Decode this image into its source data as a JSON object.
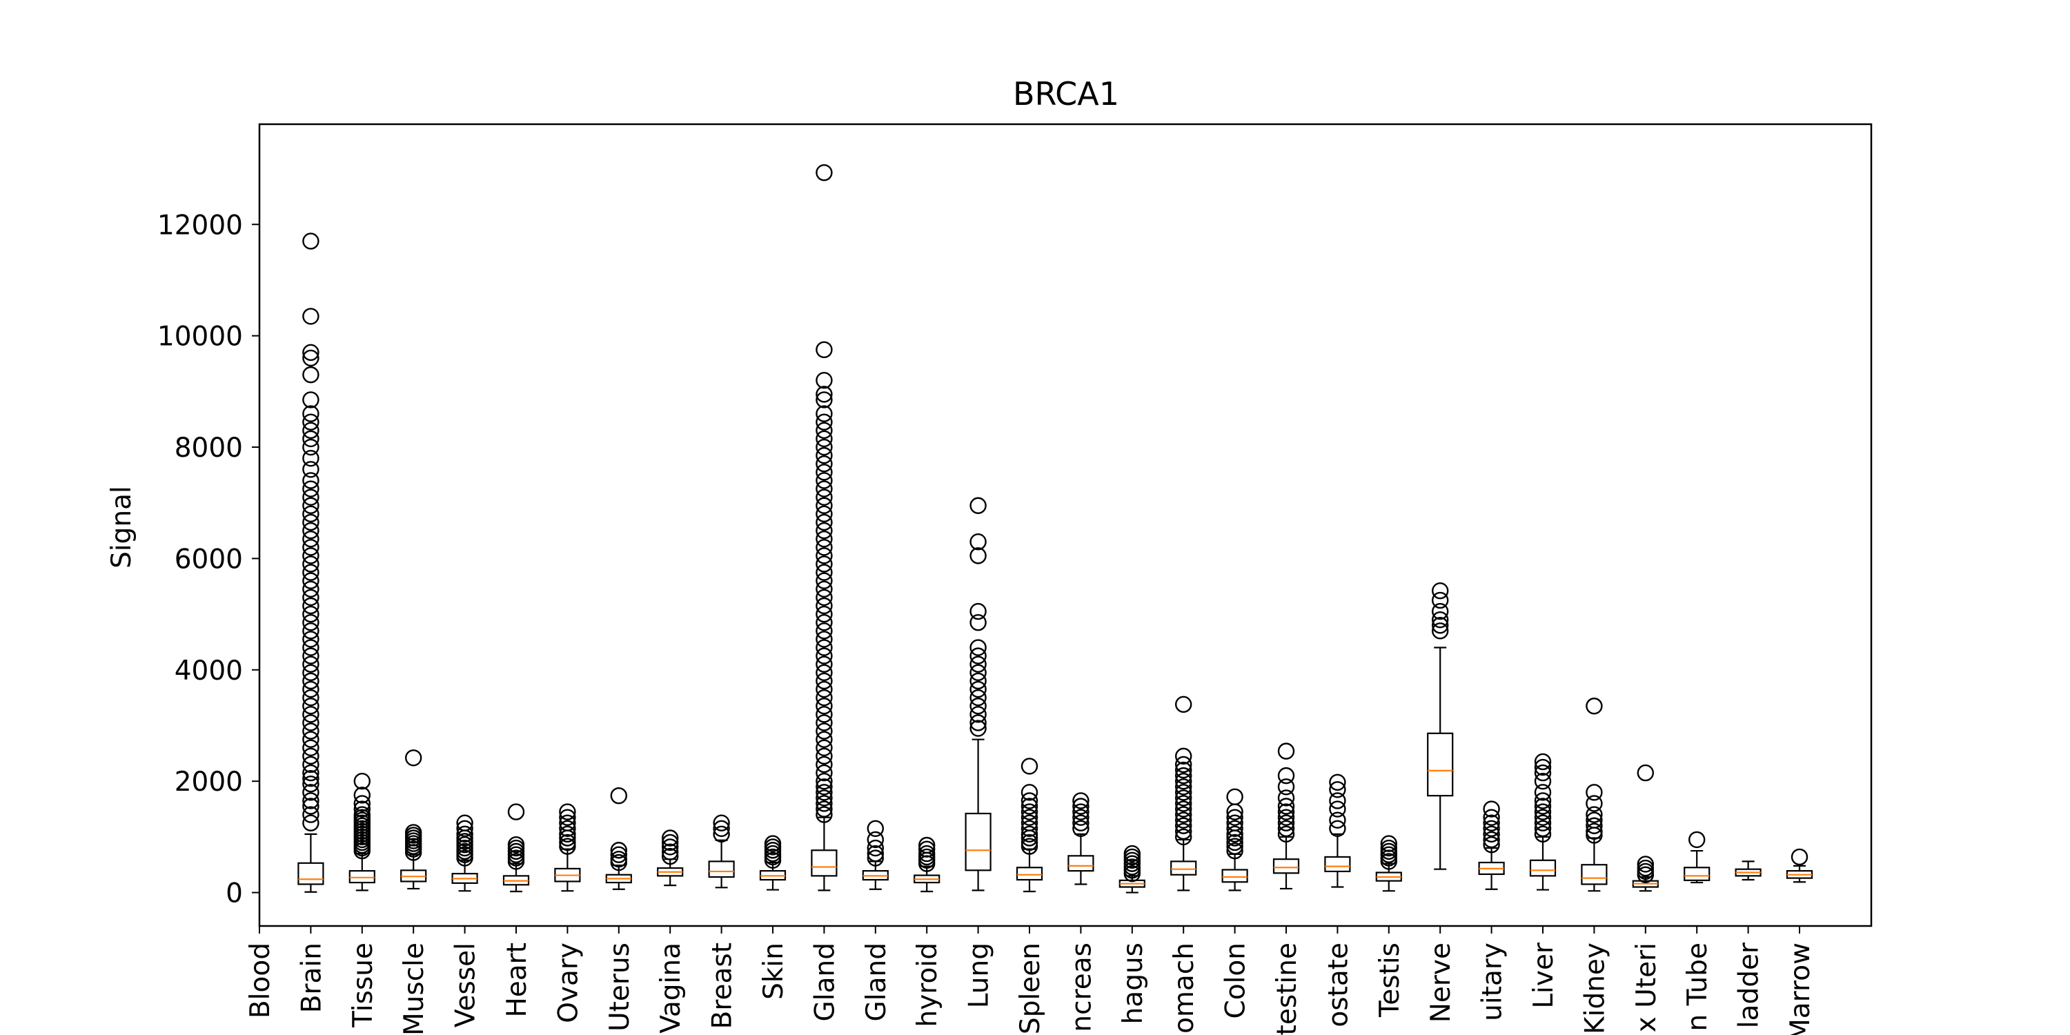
{
  "chart_data": {
    "type": "box",
    "title": "BRCA1",
    "xlabel": "",
    "ylabel": "Signal",
    "ylim": [
      -600,
      13800
    ],
    "yticks": [
      0,
      2000,
      4000,
      6000,
      8000,
      10000,
      12000
    ],
    "grid": false,
    "categories": [
      "Blood",
      "Brain",
      "Tissue",
      "Muscle",
      "Vessel",
      "Heart",
      "Ovary",
      "Uterus",
      "Vagina",
      "Breast",
      "Skin",
      "Gland",
      "Gland",
      "hyroid",
      "Lung",
      "Spleen",
      "ncreas",
      "hagus",
      "omach",
      "Colon",
      "testine",
      "ostate",
      "Testis",
      "Nerve",
      "uitary",
      "Liver",
      "Kidney",
      "x Uteri",
      "n Tube",
      "ladder",
      "Marrow"
    ],
    "colors": {
      "box": "#000000",
      "median": "#ff7f0e"
    },
    "boxes": [
      {
        "category": "Blood",
        "q1": null,
        "median": null,
        "q3": null,
        "whisker_low": null,
        "whisker_high": null,
        "outliers": []
      },
      {
        "category": "Brain",
        "q1": 150,
        "median": 240,
        "q3": 530,
        "whisker_low": 10,
        "whisker_high": 1050,
        "outliers": [
          1250,
          1400,
          1550,
          1650,
          1800,
          1950,
          2050,
          2150,
          2300,
          2450,
          2600,
          2750,
          2900,
          3050,
          3200,
          3350,
          3500,
          3650,
          3800,
          3950,
          4100,
          4250,
          4400,
          4550,
          4700,
          4850,
          5000,
          5150,
          5300,
          5450,
          5600,
          5750,
          5900,
          6050,
          6200,
          6350,
          6500,
          6650,
          6800,
          6950,
          7100,
          7250,
          7400,
          7600,
          7800,
          8000,
          8150,
          8300,
          8450,
          8600,
          8850,
          9300,
          9600,
          9700,
          10350,
          11700
        ]
      },
      {
        "category": "Tissue",
        "q1": 180,
        "median": 270,
        "q3": 390,
        "whisker_low": 40,
        "whisker_high": 700,
        "outliers": [
          750,
          800,
          850,
          900,
          950,
          1000,
          1050,
          1100,
          1150,
          1200,
          1250,
          1300,
          1350,
          1400,
          1500,
          1600,
          1750,
          2000
        ]
      },
      {
        "category": "Muscle",
        "q1": 200,
        "median": 290,
        "q3": 400,
        "whisker_low": 70,
        "whisker_high": 680,
        "outliers": [
          720,
          780,
          830,
          880,
          930,
          980,
          1030,
          1080,
          2420
        ]
      },
      {
        "category": "Vessel",
        "q1": 170,
        "median": 250,
        "q3": 340,
        "whisker_low": 30,
        "whisker_high": 580,
        "outliers": [
          620,
          680,
          740,
          800,
          860,
          920,
          980,
          1050,
          1150,
          1250
        ]
      },
      {
        "category": "Heart",
        "q1": 140,
        "median": 210,
        "q3": 300,
        "whisker_low": 20,
        "whisker_high": 520,
        "outliers": [
          560,
          620,
          680,
          740,
          800,
          860,
          1450
        ]
      },
      {
        "category": "Ovary",
        "q1": 200,
        "median": 310,
        "q3": 430,
        "whisker_low": 30,
        "whisker_high": 780,
        "outliers": [
          830,
          900,
          980,
          1050,
          1150,
          1250,
          1350,
          1450
        ]
      },
      {
        "category": "Uterus",
        "q1": 180,
        "median": 250,
        "q3": 320,
        "whisker_low": 60,
        "whisker_high": 490,
        "outliers": [
          540,
          600,
          680,
          760,
          1740
        ]
      },
      {
        "category": "Vagina",
        "q1": 300,
        "median": 370,
        "q3": 440,
        "whisker_low": 130,
        "whisker_high": 600,
        "outliers": [
          650,
          730,
          820,
          900,
          980
        ]
      },
      {
        "category": "Breast",
        "q1": 280,
        "median": 380,
        "q3": 560,
        "whisker_low": 90,
        "whisker_high": 940,
        "outliers": [
          1050,
          1150,
          1250
        ]
      },
      {
        "category": "Skin",
        "q1": 230,
        "median": 300,
        "q3": 390,
        "whisker_low": 50,
        "whisker_high": 540,
        "outliers": [
          580,
          640,
          700,
          760,
          820,
          880
        ]
      },
      {
        "category": "Gland",
        "q1": 300,
        "median": 460,
        "q3": 760,
        "whisker_low": 40,
        "whisker_high": 1350,
        "outliers": [
          1400,
          1500,
          1600,
          1700,
          1800,
          1900,
          2000,
          2150,
          2300,
          2450,
          2600,
          2750,
          2900,
          3050,
          3200,
          3350,
          3500,
          3650,
          3800,
          3950,
          4100,
          4250,
          4400,
          4550,
          4700,
          4850,
          5000,
          5150,
          5300,
          5450,
          5600,
          5750,
          5900,
          6050,
          6200,
          6350,
          6500,
          6650,
          6800,
          6950,
          7100,
          7250,
          7400,
          7550,
          7700,
          7850,
          8000,
          8150,
          8300,
          8450,
          8600,
          8850,
          8950,
          9200,
          9750,
          12930
        ]
      },
      {
        "category": "Gland",
        "q1": 230,
        "median": 300,
        "q3": 390,
        "whisker_low": 60,
        "whisker_high": 560,
        "outliers": [
          620,
          700,
          800,
          950,
          1150
        ]
      },
      {
        "category": "hyroid",
        "q1": 180,
        "median": 240,
        "q3": 310,
        "whisker_low": 20,
        "whisker_high": 470,
        "outliers": [
          520,
          580,
          640,
          700,
          780,
          850
        ]
      },
      {
        "category": "Lung",
        "q1": 400,
        "median": 760,
        "q3": 1420,
        "whisker_low": 40,
        "whisker_high": 2750,
        "outliers": [
          2950,
          3050,
          3200,
          3350,
          3500,
          3650,
          3800,
          3950,
          4100,
          4250,
          4400,
          4850,
          5050,
          6050,
          6300,
          6950
        ]
      },
      {
        "category": "Spleen",
        "q1": 230,
        "median": 320,
        "q3": 450,
        "whisker_low": 20,
        "whisker_high": 780,
        "outliers": [
          830,
          900,
          980,
          1050,
          1150,
          1250,
          1350,
          1450,
          1550,
          1650,
          1800,
          2270
        ]
      },
      {
        "category": "ncreas",
        "q1": 390,
        "median": 480,
        "q3": 660,
        "whisker_low": 150,
        "whisker_high": 1050,
        "outliers": [
          1150,
          1250,
          1350,
          1450,
          1550,
          1650
        ]
      },
      {
        "category": "hagus",
        "q1": 100,
        "median": 160,
        "q3": 220,
        "whisker_low": 0,
        "whisker_high": 300,
        "outliers": [
          340,
          400,
          460,
          520,
          580,
          640,
          700
        ]
      },
      {
        "category": "omach",
        "q1": 320,
        "median": 420,
        "q3": 560,
        "whisker_low": 40,
        "whisker_high": 950,
        "outliers": [
          1000,
          1100,
          1200,
          1300,
          1400,
          1500,
          1600,
          1700,
          1800,
          1900,
          2000,
          2100,
          2200,
          2300,
          2450,
          3380
        ]
      },
      {
        "category": "Colon",
        "q1": 190,
        "median": 280,
        "q3": 410,
        "whisker_low": 40,
        "whisker_high": 690,
        "outliers": [
          750,
          830,
          900,
          980,
          1050,
          1150,
          1250,
          1350,
          1450,
          1720
        ]
      },
      {
        "category": "testine",
        "q1": 350,
        "median": 450,
        "q3": 600,
        "whisker_low": 70,
        "whisker_high": 1000,
        "outliers": [
          1050,
          1150,
          1250,
          1350,
          1450,
          1550,
          1700,
          1900,
          2100,
          2540
        ]
      },
      {
        "category": "ostate",
        "q1": 380,
        "median": 470,
        "q3": 640,
        "whisker_low": 100,
        "whisker_high": 1050,
        "outliers": [
          1150,
          1300,
          1500,
          1650,
          1850,
          1980
        ]
      },
      {
        "category": "Testis",
        "q1": 210,
        "median": 280,
        "q3": 360,
        "whisker_low": 30,
        "whisker_high": 520,
        "outliers": [
          560,
          620,
          680,
          740,
          800,
          880
        ]
      },
      {
        "category": "Nerve",
        "q1": 1740,
        "median": 2190,
        "q3": 2860,
        "whisker_low": 420,
        "whisker_high": 4400,
        "outliers": [
          4700,
          4800,
          4900,
          5050,
          5250,
          5420
        ]
      },
      {
        "category": "uitary",
        "q1": 330,
        "median": 430,
        "q3": 540,
        "whisker_low": 60,
        "whisker_high": 800,
        "outliers": [
          860,
          950,
          1050,
          1150,
          1250,
          1350,
          1500
        ]
      },
      {
        "category": "Liver",
        "q1": 300,
        "median": 400,
        "q3": 580,
        "whisker_low": 50,
        "whisker_high": 1000,
        "outliers": [
          1050,
          1150,
          1250,
          1350,
          1450,
          1550,
          1650,
          1800,
          2000,
          2150,
          2250,
          2350
        ]
      },
      {
        "category": "Kidney",
        "q1": 150,
        "median": 260,
        "q3": 500,
        "whisker_low": 30,
        "whisker_high": 980,
        "outliers": [
          1030,
          1100,
          1200,
          1300,
          1400,
          1600,
          1800,
          3350
        ]
      },
      {
        "category": "x Uteri",
        "q1": 100,
        "median": 160,
        "q3": 210,
        "whisker_low": 30,
        "whisker_high": 280,
        "outliers": [
          320,
          380,
          440,
          510,
          2150
        ]
      },
      {
        "category": "n Tube",
        "q1": 220,
        "median": 300,
        "q3": 450,
        "whisker_low": 180,
        "whisker_high": 750,
        "outliers": [
          950
        ]
      },
      {
        "category": "ladder",
        "q1": 300,
        "median": 360,
        "q3": 420,
        "whisker_low": 230,
        "whisker_high": 560,
        "outliers": []
      },
      {
        "category": "Marrow",
        "q1": 260,
        "median": 320,
        "q3": 390,
        "whisker_low": 190,
        "whisker_high": 480,
        "outliers": [
          640
        ]
      }
    ]
  }
}
